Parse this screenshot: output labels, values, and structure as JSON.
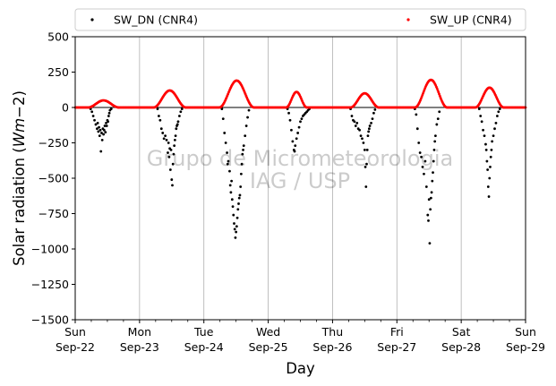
{
  "chart_data": {
    "type": "scatter",
    "xlabel": "Day",
    "ylabel_text": "Solar radiation (",
    "ylabel_unit_italic": "Wm",
    "ylabel_unit_rest": "−2)",
    "xlim": [
      0,
      7
    ],
    "ylim": [
      -1500,
      500
    ],
    "yticks": [
      500,
      250,
      0,
      -250,
      -500,
      -750,
      -1000,
      -1250,
      -1500
    ],
    "ytick_labels": [
      "500",
      "250",
      "0",
      "−250",
      "−500",
      "−750",
      "−1000",
      "−1250",
      "−1500"
    ],
    "xticks": [
      {
        "x": 0,
        "day": "Sun",
        "date": "Sep-22"
      },
      {
        "x": 1,
        "day": "Mon",
        "date": "Sep-23"
      },
      {
        "x": 2,
        "day": "Tue",
        "date": "Sep-24"
      },
      {
        "x": 3,
        "day": "Wed",
        "date": "Sep-25"
      },
      {
        "x": 4,
        "day": "Thu",
        "date": "Sep-26"
      },
      {
        "x": 5,
        "day": "Fri",
        "date": "Sep-27"
      },
      {
        "x": 6,
        "day": "Sat",
        "date": "Sep-28"
      },
      {
        "x": 7,
        "day": "Sun",
        "date": "Sep-29"
      }
    ],
    "minor_ticks_per_day": 4,
    "grid": "vertical",
    "legend_position": "top, above plot",
    "watermark": [
      "Grupo de Micrometeorologia",
      "IAG / USP"
    ],
    "series": [
      {
        "name": "SW_DN (CNR4)",
        "color": "#000000",
        "points": [
          [
            0.24,
            -10
          ],
          [
            0.26,
            -30
          ],
          [
            0.28,
            -60
          ],
          [
            0.3,
            -90
          ],
          [
            0.32,
            -120
          ],
          [
            0.34,
            -150
          ],
          [
            0.35,
            -110
          ],
          [
            0.36,
            -170
          ],
          [
            0.37,
            -140
          ],
          [
            0.38,
            -200
          ],
          [
            0.39,
            -160
          ],
          [
            0.4,
            -310
          ],
          [
            0.41,
            -180
          ],
          [
            0.42,
            -230
          ],
          [
            0.43,
            -150
          ],
          [
            0.44,
            -190
          ],
          [
            0.45,
            -160
          ],
          [
            0.46,
            -130
          ],
          [
            0.47,
            -175
          ],
          [
            0.48,
            -110
          ],
          [
            0.49,
            -130
          ],
          [
            0.5,
            -90
          ],
          [
            0.51,
            -100
          ],
          [
            0.52,
            -60
          ],
          [
            0.53,
            -40
          ],
          [
            0.54,
            -20
          ],
          [
            0.56,
            -10
          ],
          [
            1.28,
            -10
          ],
          [
            1.3,
            -60
          ],
          [
            1.32,
            -90
          ],
          [
            1.34,
            -150
          ],
          [
            1.36,
            -180
          ],
          [
            1.38,
            -220
          ],
          [
            1.4,
            -200
          ],
          [
            1.42,
            -230
          ],
          [
            1.44,
            -320
          ],
          [
            1.45,
            -250
          ],
          [
            1.46,
            -350
          ],
          [
            1.47,
            -290
          ],
          [
            1.48,
            -440
          ],
          [
            1.49,
            -300
          ],
          [
            1.5,
            -510
          ],
          [
            1.51,
            -550
          ],
          [
            1.52,
            -400
          ],
          [
            1.53,
            -330
          ],
          [
            1.54,
            -270
          ],
          [
            1.55,
            -230
          ],
          [
            1.56,
            -200
          ],
          [
            1.57,
            -150
          ],
          [
            1.58,
            -130
          ],
          [
            1.59,
            -120
          ],
          [
            1.6,
            -100
          ],
          [
            1.62,
            -60
          ],
          [
            1.64,
            -30
          ],
          [
            1.66,
            -10
          ],
          [
            2.28,
            -10
          ],
          [
            2.3,
            -80
          ],
          [
            2.32,
            -180
          ],
          [
            2.34,
            -250
          ],
          [
            2.36,
            -320
          ],
          [
            2.37,
            -400
          ],
          [
            2.38,
            -380
          ],
          [
            2.4,
            -450
          ],
          [
            2.41,
            -550
          ],
          [
            2.42,
            -600
          ],
          [
            2.43,
            -520
          ],
          [
            2.44,
            -650
          ],
          [
            2.45,
            -700
          ],
          [
            2.46,
            -760
          ],
          [
            2.47,
            -820
          ],
          [
            2.48,
            -860
          ],
          [
            2.49,
            -920
          ],
          [
            2.5,
            -880
          ],
          [
            2.51,
            -840
          ],
          [
            2.52,
            -780
          ],
          [
            2.53,
            -720
          ],
          [
            2.54,
            -680
          ],
          [
            2.55,
            -640
          ],
          [
            2.56,
            -620
          ],
          [
            2.57,
            -560
          ],
          [
            2.58,
            -470
          ],
          [
            2.59,
            -400
          ],
          [
            2.6,
            -330
          ],
          [
            2.61,
            -300
          ],
          [
            2.62,
            -270
          ],
          [
            2.64,
            -200
          ],
          [
            2.66,
            -130
          ],
          [
            2.68,
            -70
          ],
          [
            2.7,
            -20
          ],
          [
            3.3,
            -10
          ],
          [
            3.32,
            -40
          ],
          [
            3.34,
            -90
          ],
          [
            3.36,
            -160
          ],
          [
            3.38,
            -240
          ],
          [
            3.4,
            -300
          ],
          [
            3.41,
            -310
          ],
          [
            3.42,
            -270
          ],
          [
            3.44,
            -220
          ],
          [
            3.46,
            -180
          ],
          [
            3.48,
            -140
          ],
          [
            3.5,
            -100
          ],
          [
            3.52,
            -80
          ],
          [
            3.54,
            -60
          ],
          [
            3.56,
            -50
          ],
          [
            3.58,
            -40
          ],
          [
            3.6,
            -30
          ],
          [
            3.62,
            -20
          ],
          [
            3.64,
            -10
          ],
          [
            4.28,
            -10
          ],
          [
            4.3,
            -60
          ],
          [
            4.32,
            -90
          ],
          [
            4.34,
            -100
          ],
          [
            4.36,
            -130
          ],
          [
            4.38,
            -110
          ],
          [
            4.4,
            -150
          ],
          [
            4.42,
            -160
          ],
          [
            4.44,
            -200
          ],
          [
            4.46,
            -220
          ],
          [
            4.48,
            -250
          ],
          [
            4.5,
            -300
          ],
          [
            4.51,
            -420
          ],
          [
            4.52,
            -560
          ],
          [
            4.53,
            -400
          ],
          [
            4.54,
            -300
          ],
          [
            4.55,
            -200
          ],
          [
            4.56,
            -170
          ],
          [
            4.57,
            -150
          ],
          [
            4.58,
            -130
          ],
          [
            4.6,
            -110
          ],
          [
            4.62,
            -80
          ],
          [
            4.64,
            -40
          ],
          [
            4.66,
            -15
          ],
          [
            5.28,
            -10
          ],
          [
            5.3,
            -50
          ],
          [
            5.32,
            -150
          ],
          [
            5.34,
            -250
          ],
          [
            5.36,
            -320
          ],
          [
            5.38,
            -350
          ],
          [
            5.4,
            -420
          ],
          [
            5.42,
            -470
          ],
          [
            5.44,
            -380
          ],
          [
            5.46,
            -560
          ],
          [
            5.48,
            -760
          ],
          [
            5.49,
            -800
          ],
          [
            5.5,
            -650
          ],
          [
            5.51,
            -960
          ],
          [
            5.52,
            -720
          ],
          [
            5.53,
            -640
          ],
          [
            5.54,
            -600
          ],
          [
            5.55,
            -520
          ],
          [
            5.56,
            -460
          ],
          [
            5.57,
            -380
          ],
          [
            5.58,
            -300
          ],
          [
            5.59,
            -240
          ],
          [
            5.6,
            -200
          ],
          [
            5.62,
            -120
          ],
          [
            5.64,
            -80
          ],
          [
            5.66,
            -30
          ],
          [
            6.28,
            -10
          ],
          [
            6.3,
            -60
          ],
          [
            6.32,
            -100
          ],
          [
            6.34,
            -160
          ],
          [
            6.36,
            -200
          ],
          [
            6.38,
            -260
          ],
          [
            6.39,
            -300
          ],
          [
            6.4,
            -380
          ],
          [
            6.41,
            -440
          ],
          [
            6.42,
            -560
          ],
          [
            6.43,
            -630
          ],
          [
            6.44,
            -500
          ],
          [
            6.45,
            -420
          ],
          [
            6.46,
            -350
          ],
          [
            6.47,
            -300
          ],
          [
            6.48,
            -240
          ],
          [
            6.5,
            -200
          ],
          [
            6.52,
            -150
          ],
          [
            6.54,
            -110
          ],
          [
            6.56,
            -60
          ],
          [
            6.58,
            -30
          ],
          [
            6.6,
            -10
          ]
        ]
      },
      {
        "name": "SW_UP (CNR4)",
        "color": "#ff0000",
        "peaks": [
          {
            "center": 0.44,
            "half_width": 0.24,
            "peak": 50
          },
          {
            "center": 1.47,
            "half_width": 0.25,
            "peak": 120
          },
          {
            "center": 2.51,
            "half_width": 0.27,
            "peak": 190
          },
          {
            "center": 3.44,
            "half_width": 0.16,
            "peak": 110
          },
          {
            "center": 4.5,
            "half_width": 0.22,
            "peak": 100
          },
          {
            "center": 5.53,
            "half_width": 0.25,
            "peak": 195
          },
          {
            "center": 6.44,
            "half_width": 0.22,
            "peak": 140
          }
        ],
        "baseline": 0
      }
    ]
  }
}
